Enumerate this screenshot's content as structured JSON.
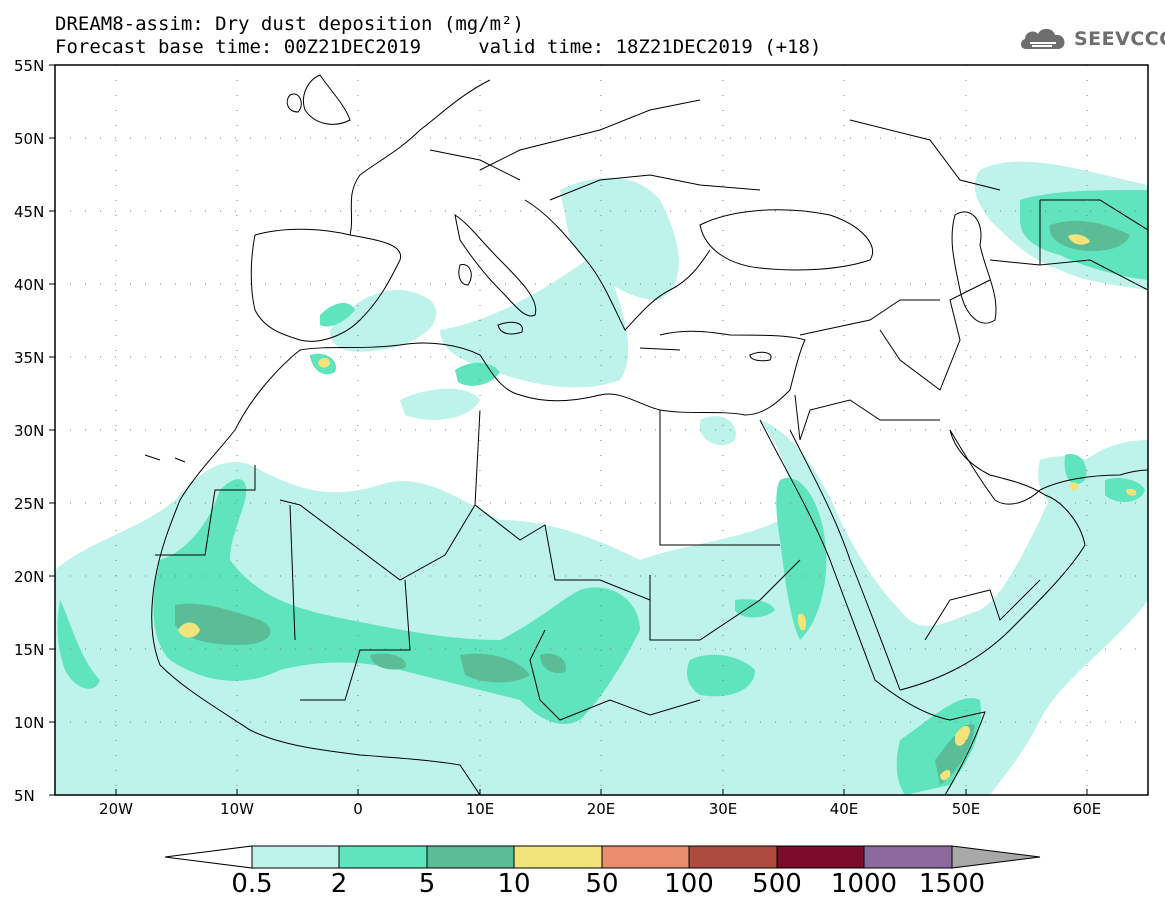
{
  "title": {
    "line1": "DREAM8-assim: Dry dust deposition (mg/m²)",
    "line2": "Forecast base time: 00Z21DEC2019     valid time: 18Z21DEC2019 (+18)"
  },
  "logo": {
    "text": "SEEVCCC",
    "icon": "cloud-logo-icon"
  },
  "map": {
    "lat_labels": [
      "55N",
      "50N",
      "45N",
      "40N",
      "35N",
      "30N",
      "25N",
      "20N",
      "15N",
      "10N",
      "5N"
    ],
    "lon_labels": [
      "20W",
      "10W",
      "0",
      "10E",
      "20E",
      "30E",
      "40E",
      "50E",
      "60E"
    ],
    "extent": {
      "lon": [
        -25,
        65
      ],
      "lat": [
        5,
        55
      ]
    }
  },
  "colorbar": {
    "labels": [
      "0.5",
      "2",
      "5",
      "10",
      "50",
      "100",
      "500",
      "1000",
      "1500"
    ],
    "colors": [
      "#bdf3ea",
      "#5fe4bd",
      "#5bbd98",
      "#f2e47a",
      "#e98d6b",
      "#ad4b3e",
      "#7a0b2a",
      "#8c6aa0",
      "#a8a8a8"
    ]
  }
}
